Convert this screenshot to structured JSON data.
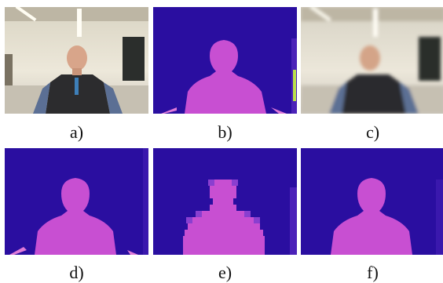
{
  "figure": {
    "panels": [
      {
        "id": "a",
        "label": "a)",
        "kind": "photo"
      },
      {
        "id": "b",
        "label": "b)",
        "kind": "depth"
      },
      {
        "id": "c",
        "label": "c)",
        "kind": "blurred-photo"
      },
      {
        "id": "d",
        "label": "d)",
        "kind": "depth"
      },
      {
        "id": "e",
        "label": "e)",
        "kind": "depth-blocky"
      },
      {
        "id": "f",
        "label": "f)",
        "kind": "depth"
      }
    ]
  },
  "colors": {
    "depth_background": "#2a0ea0",
    "depth_foreground": "#c84fd2",
    "depth_edge": "#8a3fd0",
    "room_wall": "#e9e3d3",
    "jacket": "#2c2c2e",
    "skin": "#d8a58a"
  }
}
